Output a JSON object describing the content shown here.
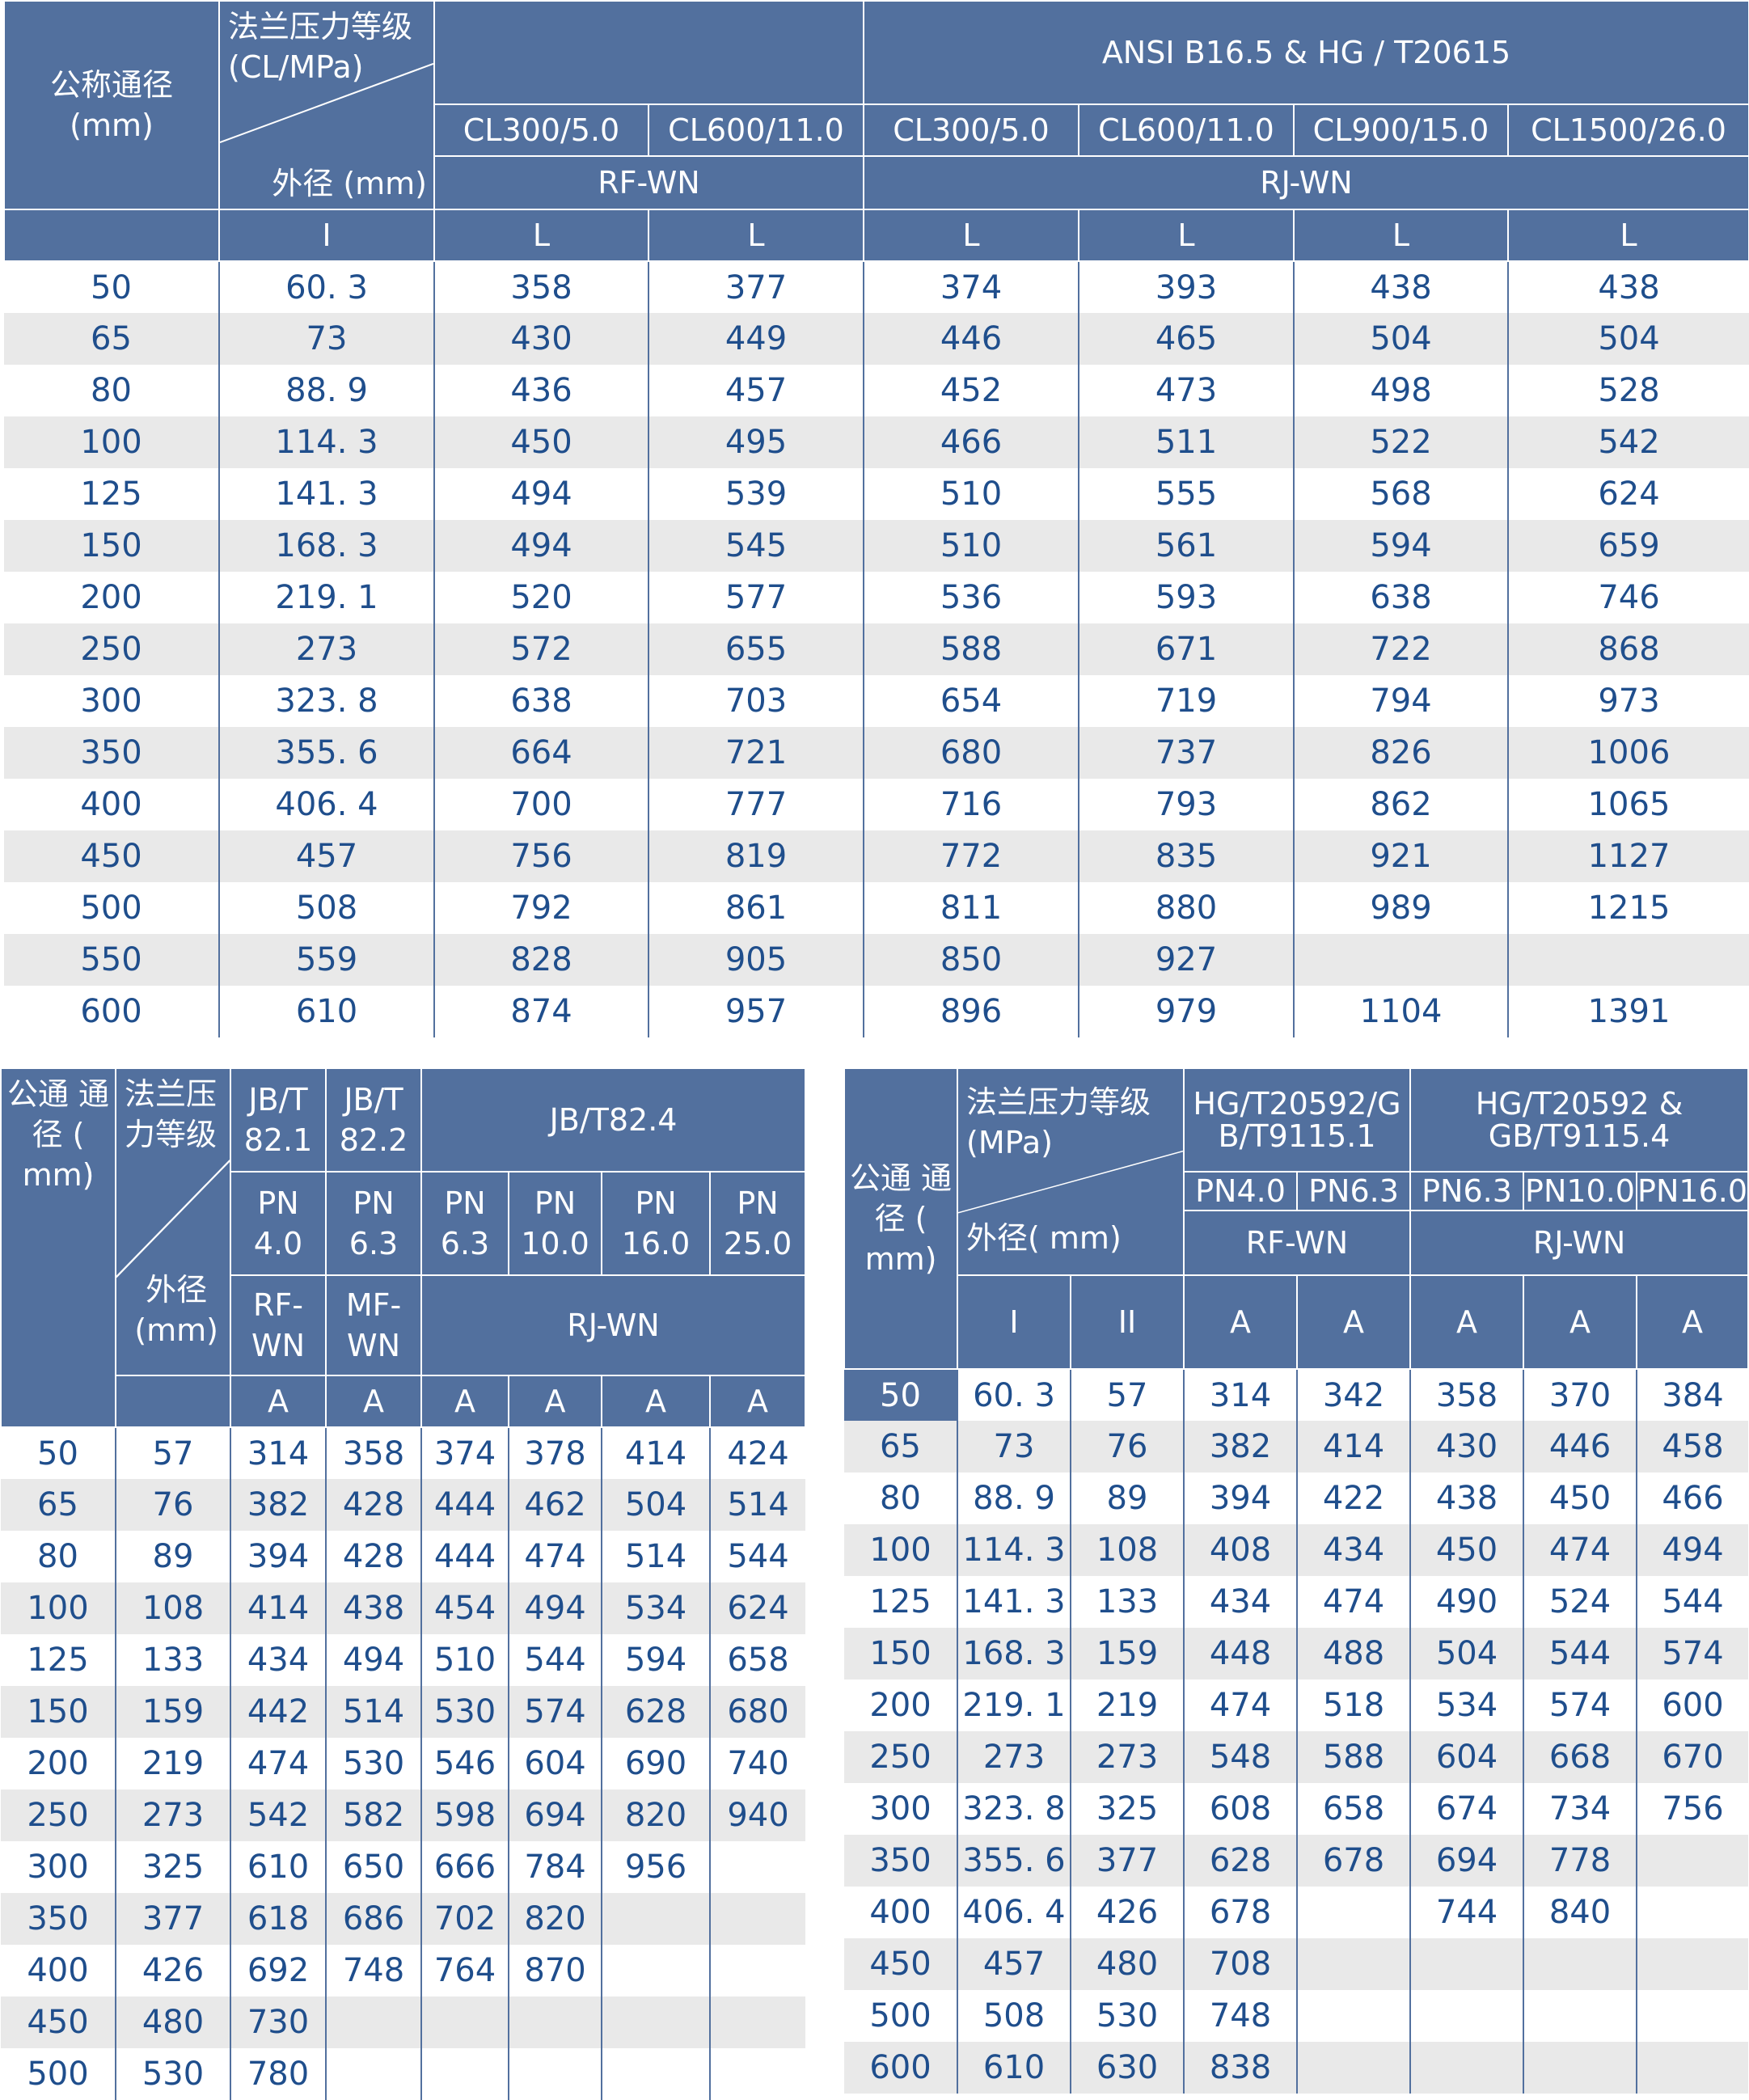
{
  "table1": {
    "header": {
      "nominal": "公称通径\n(mm)",
      "pressure_label": "法兰压力等级\n(CL/MPa)",
      "od_label": "外径  (mm)",
      "standard": "ANSI B16.5 & HG / T20615",
      "classes": [
        "CL300/5.0",
        "CL600/11.0",
        "CL300/5.0",
        "CL600/11.0",
        "CL900/15.0",
        "CL1500/26.0"
      ],
      "face_rf": "RF-WN",
      "face_rj": "RJ-WN",
      "sub": [
        "I",
        "L",
        "L",
        "L",
        "L",
        "L",
        "L"
      ]
    },
    "rows": [
      [
        "50",
        "60. 3",
        "358",
        "377",
        "374",
        "393",
        "438",
        "438"
      ],
      [
        "65",
        "73",
        "430",
        "449",
        "446",
        "465",
        "504",
        "504"
      ],
      [
        "80",
        "88. 9",
        "436",
        "457",
        "452",
        "473",
        "498",
        "528"
      ],
      [
        "100",
        "114. 3",
        "450",
        "495",
        "466",
        "511",
        "522",
        "542"
      ],
      [
        "125",
        "141. 3",
        "494",
        "539",
        "510",
        "555",
        "568",
        "624"
      ],
      [
        "150",
        "168. 3",
        "494",
        "545",
        "510",
        "561",
        "594",
        "659"
      ],
      [
        "200",
        "219. 1",
        "520",
        "577",
        "536",
        "593",
        "638",
        "746"
      ],
      [
        "250",
        "273",
        "572",
        "655",
        "588",
        "671",
        "722",
        "868"
      ],
      [
        "300",
        "323. 8",
        "638",
        "703",
        "654",
        "719",
        "794",
        "973"
      ],
      [
        "350",
        "355. 6",
        "664",
        "721",
        "680",
        "737",
        "826",
        "1006"
      ],
      [
        "400",
        "406. 4",
        "700",
        "777",
        "716",
        "793",
        "862",
        "1065"
      ],
      [
        "450",
        "457",
        "756",
        "819",
        "772",
        "835",
        "921",
        "1127"
      ],
      [
        "500",
        "508",
        "792",
        "861",
        "811",
        "880",
        "989",
        "1215"
      ],
      [
        "550",
        "559",
        "828",
        "905",
        "850",
        "927",
        "",
        ""
      ],
      [
        "600",
        "610",
        "874",
        "957",
        "896",
        "979",
        "1104",
        "1391"
      ]
    ]
  },
  "table2": {
    "header": {
      "nominal": "公通 通\n径 (\nmm)",
      "pressure_label": "法兰压\n力等级",
      "od_label": "外径\n(mm)",
      "std1": "JB/T\n82.1",
      "std2": "JB/T\n82.2",
      "std3": "JB/T82.4",
      "pn": [
        "PN\n4.0",
        "PN\n6.3",
        "PN\n6.3",
        "PN\n10.0",
        "PN\n16.0",
        "PN\n25.0"
      ],
      "face1": "RF-\nWN",
      "face2": "MF-\nWN",
      "face3": "RJ-WN",
      "sub": [
        "A",
        "A",
        "A",
        "A",
        "A",
        "A"
      ]
    },
    "rows": [
      [
        "50",
        "57",
        "314",
        "358",
        "374",
        "378",
        "414",
        "424"
      ],
      [
        "65",
        "76",
        "382",
        "428",
        "444",
        "462",
        "504",
        "514"
      ],
      [
        "80",
        "89",
        "394",
        "428",
        "444",
        "474",
        "514",
        "544"
      ],
      [
        "100",
        "108",
        "414",
        "438",
        "454",
        "494",
        "534",
        "624"
      ],
      [
        "125",
        "133",
        "434",
        "494",
        "510",
        "544",
        "594",
        "658"
      ],
      [
        "150",
        "159",
        "442",
        "514",
        "530",
        "574",
        "628",
        "680"
      ],
      [
        "200",
        "219",
        "474",
        "530",
        "546",
        "604",
        "690",
        "740"
      ],
      [
        "250",
        "273",
        "542",
        "582",
        "598",
        "694",
        "820",
        "940"
      ],
      [
        "300",
        "325",
        "610",
        "650",
        "666",
        "784",
        "956",
        ""
      ],
      [
        "350",
        "377",
        "618",
        "686",
        "702",
        "820",
        "",
        ""
      ],
      [
        "400",
        "426",
        "692",
        "748",
        "764",
        "870",
        "",
        ""
      ],
      [
        "450",
        "480",
        "730",
        "",
        "",
        "",
        "",
        ""
      ],
      [
        "500",
        "530",
        "780",
        "",
        "",
        "",
        "",
        ""
      ]
    ]
  },
  "table3": {
    "header": {
      "nominal": "公通 通\n径 (\nmm)",
      "pressure_label": "法兰压力等级\n(MPa)",
      "od_label": "外径( mm)",
      "std1": "HG/T20592/G\nB/T9115.1",
      "std2": "HG/T20592 &\nGB/T9115.4",
      "pn": [
        "PN4.0",
        "PN6.3",
        "PN6.3",
        "PN10.0",
        "PN16.0"
      ],
      "face_rf": "RF-WN",
      "face_rj": "RJ-WN",
      "sub": [
        "I",
        "II",
        "A",
        "A",
        "A",
        "A",
        "A"
      ]
    },
    "first_row": [
      "50",
      "60. 3",
      "57",
      "314",
      "342",
      "358",
      "370",
      "384"
    ],
    "rows": [
      [
        "65",
        "73",
        "76",
        "382",
        "414",
        "430",
        "446",
        "458"
      ],
      [
        "80",
        "88. 9",
        "89",
        "394",
        "422",
        "438",
        "450",
        "466"
      ],
      [
        "100",
        "114. 3",
        "108",
        "408",
        "434",
        "450",
        "474",
        "494"
      ],
      [
        "125",
        "141. 3",
        "133",
        "434",
        "474",
        "490",
        "524",
        "544"
      ],
      [
        "150",
        "168. 3",
        "159",
        "448",
        "488",
        "504",
        "544",
        "574"
      ],
      [
        "200",
        "219. 1",
        "219",
        "474",
        "518",
        "534",
        "574",
        "600"
      ],
      [
        "250",
        "273",
        "273",
        "548",
        "588",
        "604",
        "668",
        "670"
      ],
      [
        "300",
        "323. 8",
        "325",
        "608",
        "658",
        "674",
        "734",
        "756"
      ],
      [
        "350",
        "355. 6",
        "377",
        "628",
        "678",
        "694",
        "778",
        ""
      ],
      [
        "400",
        "406. 4",
        "426",
        "678",
        "",
        "744",
        "840",
        ""
      ],
      [
        "450",
        "457",
        "480",
        "708",
        "",
        "",
        "",
        ""
      ],
      [
        "500",
        "508",
        "530",
        "748",
        "",
        "",
        "",
        ""
      ],
      [
        "600",
        "610",
        "630",
        "838",
        "",
        "",
        "",
        ""
      ]
    ]
  },
  "colors": {
    "header_bg": "#52709e",
    "text": "#1f4e8c",
    "stripe": "#e9e9e9"
  }
}
